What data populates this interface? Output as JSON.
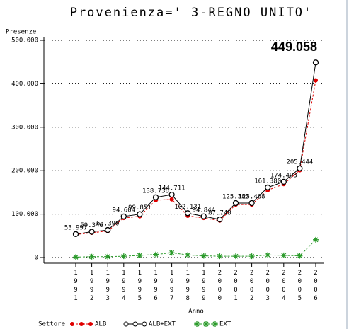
{
  "chart_data": {
    "type": "line",
    "title": "Provenienza=' 3-REGNO UNITO'",
    "y_label": "Presenze",
    "x_label": "Anno",
    "legend_title": "Settore",
    "categories": [
      "1991",
      "1992",
      "1993",
      "1994",
      "1995",
      "1996",
      "1997",
      "1998",
      "1999",
      "2000",
      "2001",
      "2002",
      "2003",
      "2004",
      "2005",
      "2006"
    ],
    "series": [
      {
        "name": "ALB",
        "color": "#e00000",
        "marker": "dot",
        "dashed": true,
        "values": [
          53000,
          57000,
          61000,
          91000,
          95000,
          132000,
          134000,
          96000,
          91000,
          85000,
          122000,
          122000,
          155000,
          169000,
          201000,
          408000
        ]
      },
      {
        "name": "ALB+EXT",
        "color": "#000000",
        "marker": "circle",
        "dashed": false,
        "values": [
          53997,
          59346,
          63390,
          94604,
          99851,
          138736,
          144711,
          102131,
          94844,
          87748,
          125382,
          125468,
          161380,
          174493,
          205444,
          449058
        ],
        "value_labels": [
          "53.997",
          "59.346",
          "63.390",
          "94.604",
          "99.851",
          "138.736",
          "144.711",
          "102.131",
          "94.844",
          "87.748",
          "125.382",
          "125.468",
          "161.380",
          "174.493",
          "205.444",
          "449.058"
        ]
      },
      {
        "name": "EXT",
        "color": "#2a9a2a",
        "marker": "star",
        "dashed": true,
        "values": [
          1000,
          2000,
          2000,
          3000,
          5000,
          7000,
          11000,
          6000,
          4000,
          3000,
          3000,
          3000,
          6000,
          5000,
          4000,
          41000
        ]
      }
    ],
    "ylim": [
      0,
      500000
    ],
    "yticks": [
      {
        "value": 0,
        "label": "0"
      },
      {
        "value": 100000,
        "label": "100.000"
      },
      {
        "value": 200000,
        "label": "200.000"
      },
      {
        "value": 300000,
        "label": "300.000"
      },
      {
        "value": 400000,
        "label": "400.000"
      },
      {
        "value": 500000,
        "label": "500.000"
      }
    ],
    "grid": true
  }
}
